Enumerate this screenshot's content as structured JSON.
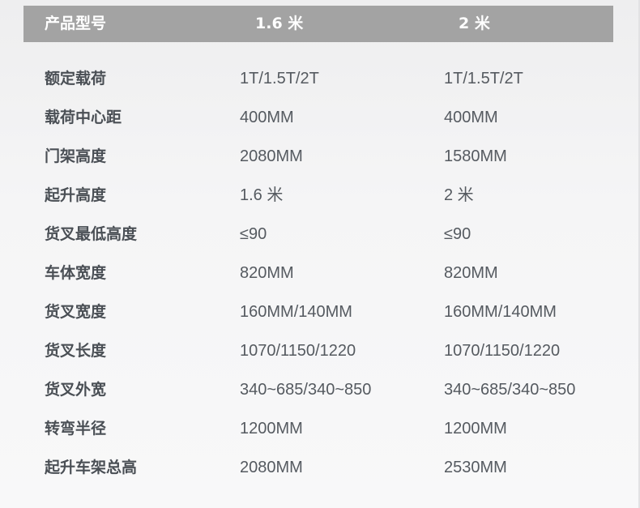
{
  "header": {
    "label": "产品型号",
    "col1": "1.6 米",
    "col2": "2 米"
  },
  "rows": [
    {
      "label": "额定载荷",
      "col1": "1T/1.5T/2T",
      "col2": "1T/1.5T/2T"
    },
    {
      "label": "载荷中心距",
      "col1": "400MM",
      "col2": "400MM"
    },
    {
      "label": "门架高度",
      "col1": "2080MM",
      "col2": "1580MM"
    },
    {
      "label": "起升高度",
      "col1": "1.6 米",
      "col2": "2 米"
    },
    {
      "label": "货叉最低高度",
      "col1": "≤90",
      "col2": "≤90"
    },
    {
      "label": "车体宽度",
      "col1": "820MM",
      "col2": "820MM"
    },
    {
      "label": "货叉宽度",
      "col1": "160MM/140MM",
      "col2": "160MM/140MM"
    },
    {
      "label": "货叉长度",
      "col1": "1070/1150/1220",
      "col2": "1070/1150/1220"
    },
    {
      "label": "货叉外宽",
      "col1": "340~685/340~850",
      "col2": "340~685/340~850"
    },
    {
      "label": "转弯半径",
      "col1": "1200MM",
      "col2": "1200MM"
    },
    {
      "label": "起升车架总高",
      "col1": "2080MM",
      "col2": "2530MM"
    }
  ]
}
